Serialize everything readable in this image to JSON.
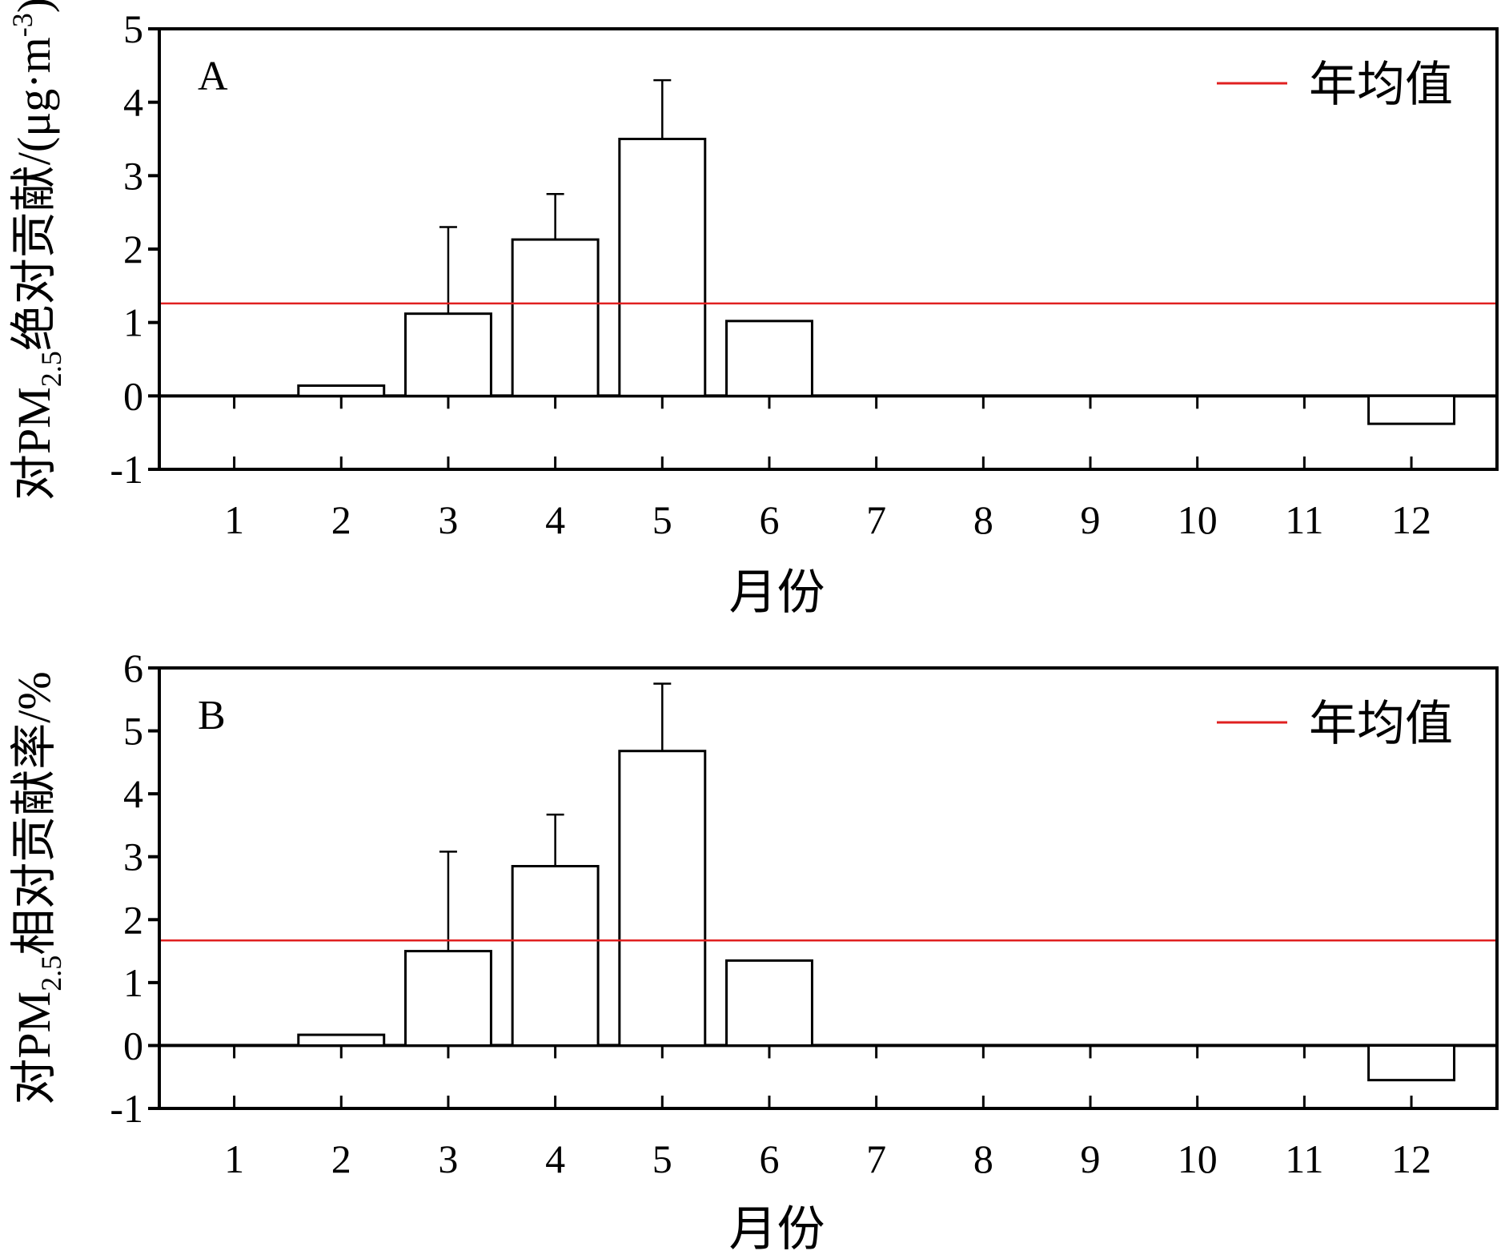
{
  "chart_data": [
    {
      "panel_label": "A",
      "type": "bar",
      "categories": [
        "1",
        "2",
        "3",
        "4",
        "5",
        "6",
        "7",
        "8",
        "9",
        "10",
        "11",
        "12"
      ],
      "series": [
        {
          "values": [
            0,
            0.14,
            1.12,
            2.13,
            3.5,
            1.02,
            0,
            0,
            0,
            0,
            0,
            -0.38
          ],
          "error_plus": [
            0,
            0,
            1.18,
            0.62,
            0.8,
            0,
            0,
            0,
            0,
            0,
            0,
            0
          ]
        }
      ],
      "reference_line": {
        "name": "年均值",
        "value": 1.26,
        "color": "#e02020"
      },
      "ylabel_prefix": "对PM",
      "ylabel_sub": "2.5",
      "ylabel_suffix": "绝对贡献/(μg·m",
      "ylabel_sup": "-3",
      "ylabel_close": ")",
      "xlabel": "月份",
      "ylim": [
        -1,
        5
      ],
      "yticks": [
        "-1",
        "0",
        "1",
        "2",
        "3",
        "4",
        "5"
      ],
      "grid": false,
      "legend_position": "top-right"
    },
    {
      "panel_label": "B",
      "type": "bar",
      "categories": [
        "1",
        "2",
        "3",
        "4",
        "5",
        "6",
        "7",
        "8",
        "9",
        "10",
        "11",
        "12"
      ],
      "series": [
        {
          "values": [
            0,
            0.17,
            1.5,
            2.85,
            4.68,
            1.35,
            0,
            0,
            0,
            0,
            0,
            -0.55
          ],
          "error_plus": [
            0,
            0,
            1.58,
            0.82,
            1.07,
            0,
            0,
            0,
            0,
            0,
            0,
            0
          ]
        }
      ],
      "reference_line": {
        "name": "年均值",
        "value": 1.67,
        "color": "#e02020"
      },
      "ylabel_prefix": "对PM",
      "ylabel_sub": "2.5",
      "ylabel_suffix": "相对贡献率/%",
      "ylabel_sup": "",
      "ylabel_close": "",
      "xlabel": "月份",
      "ylim": [
        -1,
        6
      ],
      "yticks": [
        "-1",
        "0",
        "1",
        "2",
        "3",
        "4",
        "5",
        "6"
      ],
      "grid": false,
      "legend_position": "top-right"
    }
  ]
}
